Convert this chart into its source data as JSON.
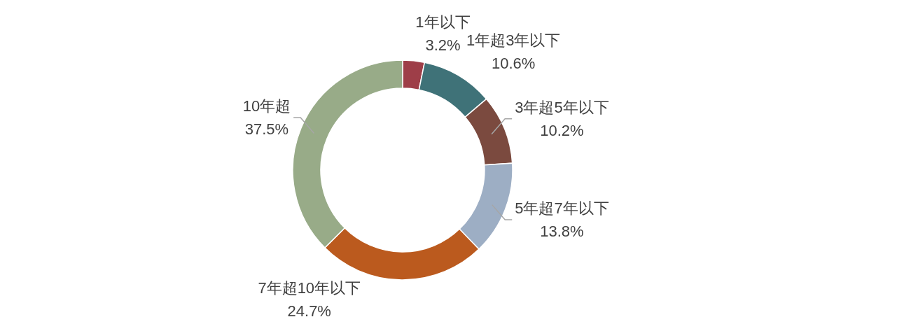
{
  "chart_data": {
    "type": "donut",
    "categories": [
      "1年以下",
      "1年超3年以下",
      "3年超5年以下",
      "5年超7年以下",
      "7年超10年以下",
      "10年超"
    ],
    "values": [
      3.2,
      10.6,
      10.2,
      13.8,
      24.7,
      37.5
    ],
    "value_labels": [
      "3.2%",
      "10.6%",
      "10.2%",
      "13.8%",
      "24.7%",
      "37.5%"
    ],
    "colors": [
      "#9e3e48",
      "#3f7278",
      "#7b4a3f",
      "#9daec4",
      "#bb5a1e",
      "#98ab88"
    ]
  }
}
